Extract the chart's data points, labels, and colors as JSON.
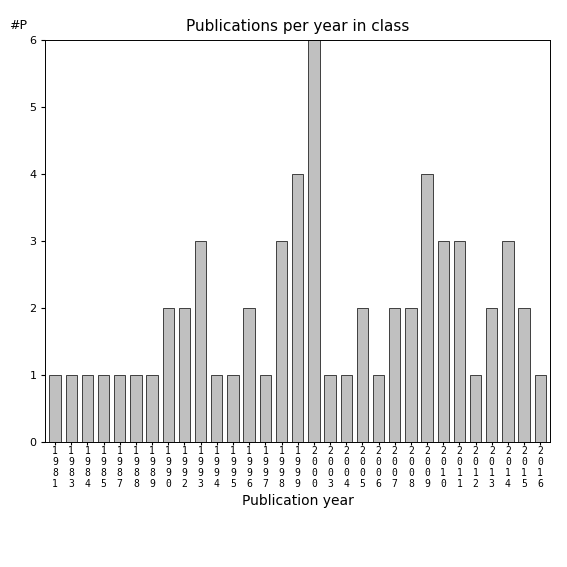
{
  "title": "Publications per year in class",
  "xlabel": "Publication year",
  "ylabel": "#P",
  "years": [
    "1981",
    "1983",
    "1984",
    "1985",
    "1987",
    "1988",
    "1989",
    "1990",
    "1992",
    "1993",
    "1994",
    "1995",
    "1996",
    "1997",
    "1998",
    "1999",
    "2000",
    "2003",
    "2004",
    "2005",
    "2006",
    "2007",
    "2008",
    "2009",
    "2010",
    "2011",
    "2012",
    "2013",
    "2014",
    "2015",
    "2016"
  ],
  "values": [
    1,
    1,
    1,
    1,
    1,
    1,
    1,
    2,
    2,
    3,
    1,
    1,
    2,
    1,
    3,
    4,
    6,
    1,
    1,
    2,
    1,
    2,
    2,
    4,
    3,
    3,
    1,
    2,
    3,
    2,
    1
  ],
  "bar_color": "#c0c0c0",
  "bar_edgecolor": "#000000",
  "ylim": [
    0,
    6
  ],
  "yticks": [
    0,
    1,
    2,
    3,
    4,
    5,
    6
  ],
  "title_fontsize": 11,
  "xlabel_fontsize": 10,
  "ylabel_fontsize": 9,
  "tick_fontsize": 7,
  "bar_width": 0.7
}
